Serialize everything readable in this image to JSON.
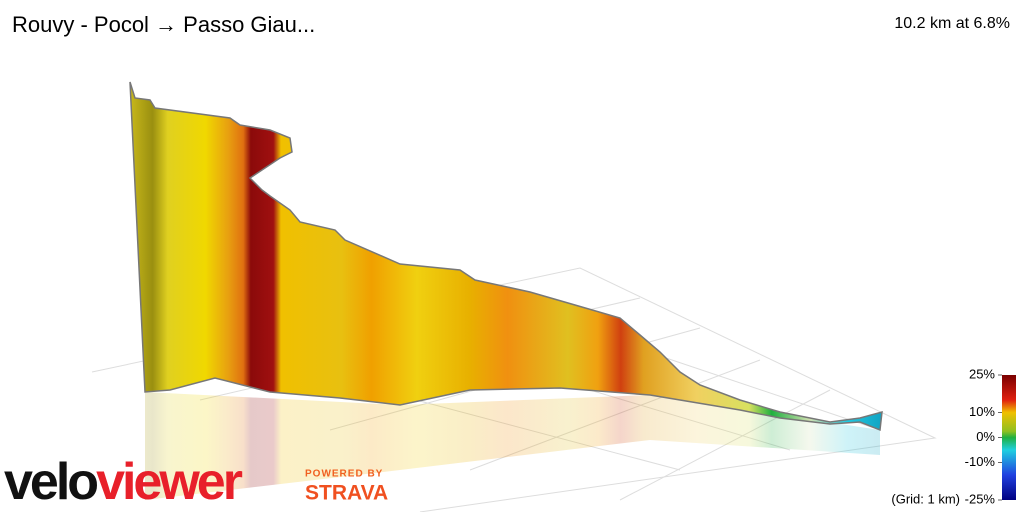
{
  "header": {
    "title": "Rouvy - Pocol → Passo Giau...",
    "summary": "10.2 km at 6.8%"
  },
  "legend": {
    "range": [
      -25,
      25
    ],
    "ticks": [
      {
        "value": 25,
        "label": "25%"
      },
      {
        "value": 10,
        "label": "10%"
      },
      {
        "value": 0,
        "label": "0%"
      },
      {
        "value": -10,
        "label": "-10%"
      },
      {
        "value": -25,
        "label": "-25%"
      }
    ],
    "grid_note": "(Grid: 1 km)"
  },
  "branding": {
    "logo_part1": "velo",
    "logo_part2": "viewer",
    "powered_by": "POWERED BY",
    "partner": "STRAVA"
  }
}
